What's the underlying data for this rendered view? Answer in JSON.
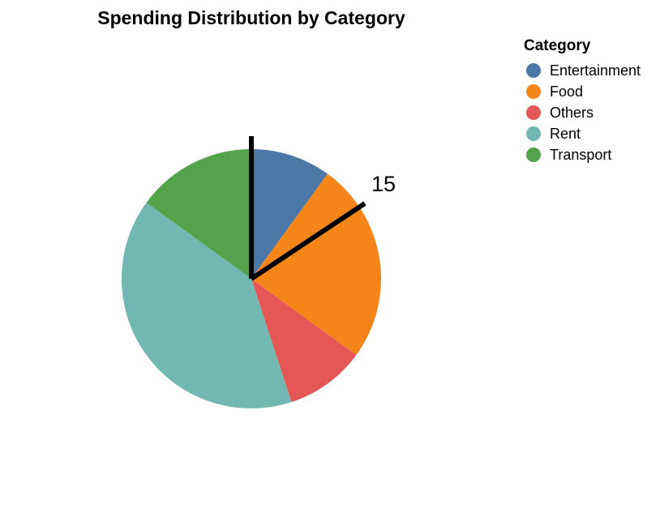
{
  "chart_data": {
    "type": "pie",
    "title": "Spending Distribution by Category",
    "legend": {
      "title": "Category",
      "placement": "top-right"
    },
    "slices": [
      {
        "label": "Entertainment",
        "value": 10,
        "color": "#4c78a8"
      },
      {
        "label": "Food",
        "value": 25,
        "color": "#f58518"
      },
      {
        "label": "Others",
        "value": 10,
        "color": "#e45756"
      },
      {
        "label": "Rent",
        "value": 40,
        "color": "#72b7b2"
      },
      {
        "label": "Transport",
        "value": 15,
        "color": "#54a24b"
      }
    ],
    "annotation": {
      "text": "15",
      "color": "#000000"
    }
  }
}
